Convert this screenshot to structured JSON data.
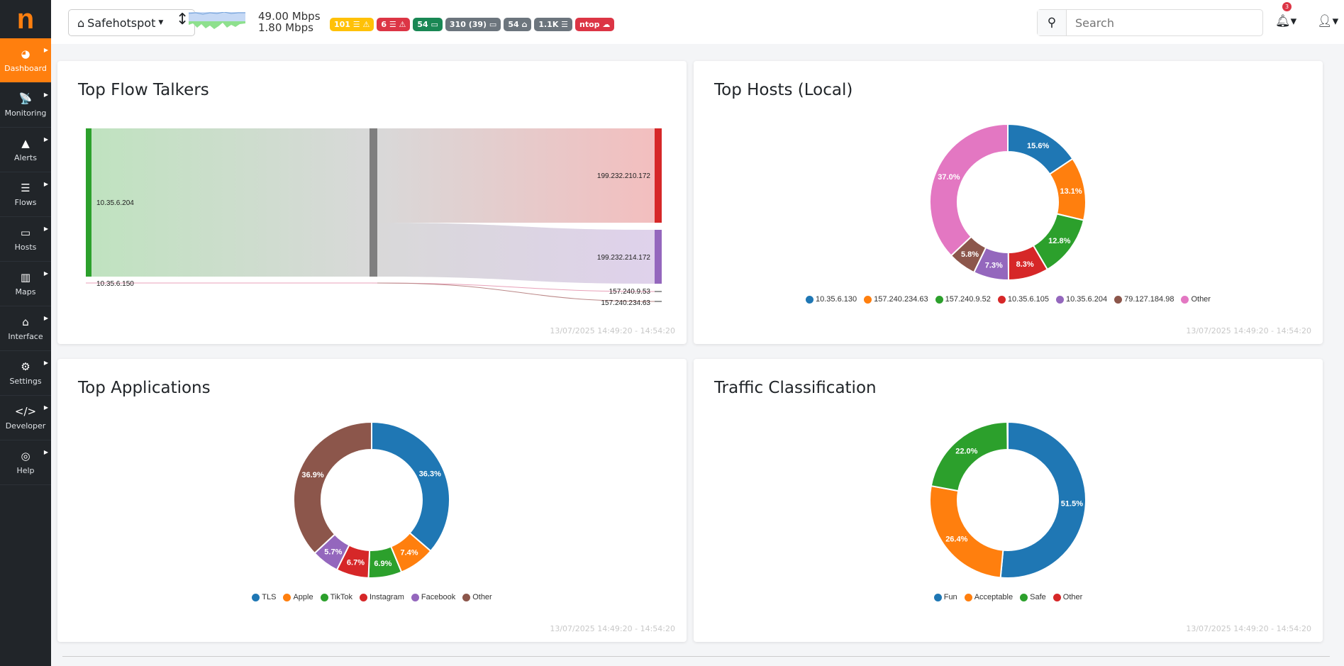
{
  "logo": "n",
  "sidebar": [
    {
      "label": "Dashboard",
      "icon": "◕"
    },
    {
      "label": "Monitoring",
      "icon": "📡"
    },
    {
      "label": "Alerts",
      "icon": "▲"
    },
    {
      "label": "Flows",
      "icon": "☰"
    },
    {
      "label": "Hosts",
      "icon": "▭"
    },
    {
      "label": "Maps",
      "icon": "▥"
    },
    {
      "label": "Interface",
      "icon": "⌂"
    },
    {
      "label": "Settings",
      "icon": "⚙"
    },
    {
      "label": "Developer",
      "icon": "</>"
    },
    {
      "label": "Help",
      "icon": "◎"
    }
  ],
  "topbar": {
    "interface": "Safehotspot",
    "rate_up": "49.00 Mbps",
    "rate_down": "1.80 Mbps",
    "badges": [
      {
        "text": "101 ☰ ⚠",
        "color": "#ffc107"
      },
      {
        "text": "6 ☰ ⚠",
        "color": "#dc3545"
      },
      {
        "text": "54 ▭",
        "color": "#198754"
      },
      {
        "text": "310 (39) ▭",
        "color": "#6c757d"
      },
      {
        "text": "54 ⌂",
        "color": "#6c757d"
      },
      {
        "text": "1.1K ☰",
        "color": "#6c757d"
      },
      {
        "text": "ntop ☁",
        "color": "#dc3545"
      }
    ],
    "search_placeholder": "Search",
    "notifications": "3"
  },
  "timestamp": "13/07/2025 14:49:20 - 14:54:20",
  "cards": {
    "flow": "Top Flow Talkers",
    "hosts": "Top Hosts (Local)",
    "apps": "Top Applications",
    "traffic": "Traffic Classification"
  },
  "sankey": {
    "sources": [
      "10.35.6.204",
      "10.35.6.150"
    ],
    "targets": [
      "199.232.210.172",
      "199.232.214.172",
      "157.240.9.53",
      "157.240.234.63"
    ]
  },
  "chart_data": [
    {
      "type": "pie",
      "title": "Top Hosts (Local)",
      "categories": [
        "10.35.6.130",
        "157.240.234.63",
        "157.240.9.52",
        "10.35.6.105",
        "10.35.6.204",
        "79.127.184.98",
        "Other"
      ],
      "values": [
        15.6,
        13.1,
        12.8,
        8.3,
        7.3,
        5.8,
        37.0
      ],
      "colors": [
        "#1f77b4",
        "#ff7f0e",
        "#2ca02c",
        "#d62728",
        "#9467bd",
        "#8c564b",
        "#e377c2"
      ]
    },
    {
      "type": "pie",
      "title": "Top Applications",
      "categories": [
        "TLS",
        "Apple",
        "TikTok",
        "Instagram",
        "Facebook",
        "Other"
      ],
      "values": [
        36.3,
        7.4,
        6.9,
        6.7,
        5.7,
        36.9
      ],
      "colors": [
        "#1f77b4",
        "#ff7f0e",
        "#2ca02c",
        "#d62728",
        "#9467bd",
        "#8c564b"
      ]
    },
    {
      "type": "pie",
      "title": "Traffic Classification",
      "categories": [
        "Fun",
        "Acceptable",
        "Safe",
        "Other"
      ],
      "values": [
        51.5,
        26.4,
        22.0,
        0.1
      ],
      "colors": [
        "#1f77b4",
        "#ff7f0e",
        "#2ca02c",
        "#d62728"
      ]
    }
  ]
}
